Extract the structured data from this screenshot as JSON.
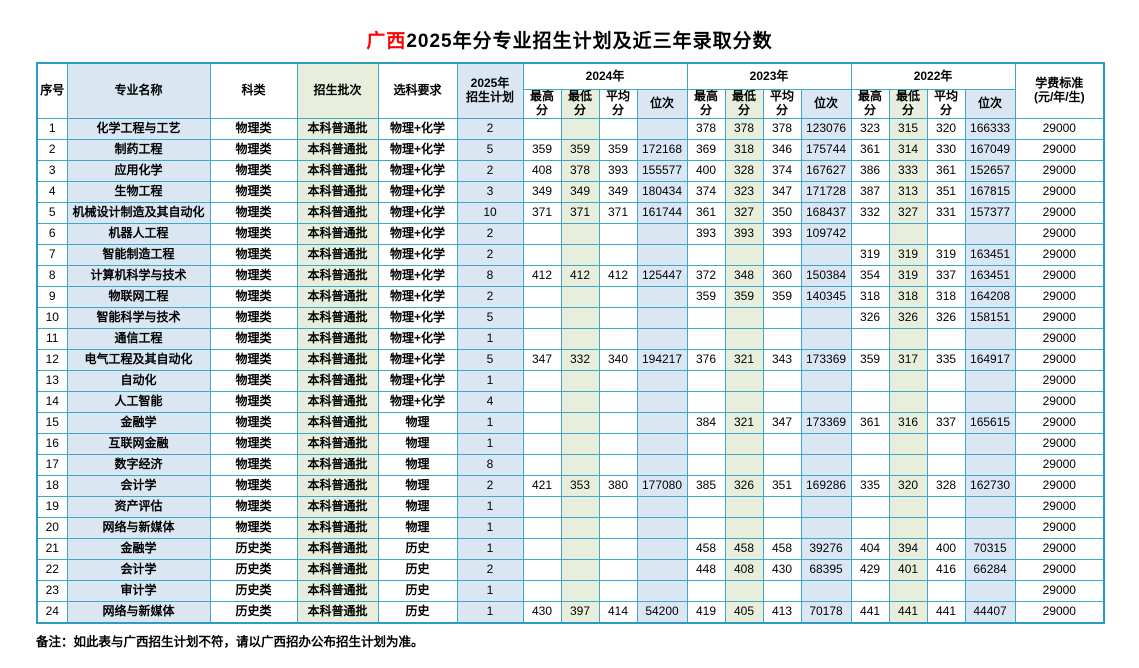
{
  "title": {
    "highlight": "广西",
    "rest": "2025年分专业招生计划及近三年录取分数"
  },
  "note": "备注：如此表与广西招生计划不符，请以广西招办公布招生计划为准。",
  "colors": {
    "border": "#3fa8c9",
    "outer_border": "#2d9cc2",
    "light_blue": "#dae7f3",
    "light_green": "#e7efdc",
    "plan_red": "#ff2a2a",
    "title_red": "#ff0000"
  },
  "header": {
    "seq": "序号",
    "major": "专业名称",
    "category": "科类",
    "batch": "招生批次",
    "subjects": "选科要求",
    "plan": "2025年\n招生计划",
    "years": [
      "2024年",
      "2023年",
      "2022年"
    ],
    "score_cols": [
      "最高分",
      "最低分",
      "平均分",
      "位次"
    ],
    "tuition": "学费标准\n(元/年/生)"
  },
  "rows": [
    {
      "seq": "1",
      "major": "化学工程与工艺",
      "category": "物理类",
      "batch": "本科普通批",
      "subjects": "物理+化学",
      "plan": "2",
      "y2024": [
        "",
        "",
        "",
        ""
      ],
      "y2023": [
        "378",
        "378",
        "378",
        "123076"
      ],
      "y2022": [
        "323",
        "315",
        "320",
        "166333"
      ],
      "tuition": "29000"
    },
    {
      "seq": "2",
      "major": "制药工程",
      "category": "物理类",
      "batch": "本科普通批",
      "subjects": "物理+化学",
      "plan": "5",
      "y2024": [
        "359",
        "359",
        "359",
        "172168"
      ],
      "y2023": [
        "369",
        "318",
        "346",
        "175744"
      ],
      "y2022": [
        "361",
        "314",
        "330",
        "167049"
      ],
      "tuition": "29000"
    },
    {
      "seq": "3",
      "major": "应用化学",
      "category": "物理类",
      "batch": "本科普通批",
      "subjects": "物理+化学",
      "plan": "2",
      "y2024": [
        "408",
        "378",
        "393",
        "155577"
      ],
      "y2023": [
        "400",
        "328",
        "374",
        "167627"
      ],
      "y2022": [
        "386",
        "333",
        "361",
        "152657"
      ],
      "tuition": "29000"
    },
    {
      "seq": "4",
      "major": "生物工程",
      "category": "物理类",
      "batch": "本科普通批",
      "subjects": "物理+化学",
      "plan": "3",
      "y2024": [
        "349",
        "349",
        "349",
        "180434"
      ],
      "y2023": [
        "374",
        "323",
        "347",
        "171728"
      ],
      "y2022": [
        "387",
        "313",
        "351",
        "167815"
      ],
      "tuition": "29000"
    },
    {
      "seq": "5",
      "major": "机械设计制造及其自动化",
      "category": "物理类",
      "batch": "本科普通批",
      "subjects": "物理+化学",
      "plan": "10",
      "y2024": [
        "371",
        "371",
        "371",
        "161744"
      ],
      "y2023": [
        "361",
        "327",
        "350",
        "168437"
      ],
      "y2022": [
        "332",
        "327",
        "331",
        "157377"
      ],
      "tuition": "29000"
    },
    {
      "seq": "6",
      "major": "机器人工程",
      "category": "物理类",
      "batch": "本科普通批",
      "subjects": "物理+化学",
      "plan": "2",
      "y2024": [
        "",
        "",
        "",
        ""
      ],
      "y2023": [
        "393",
        "393",
        "393",
        "109742"
      ],
      "y2022": [
        "",
        "",
        "",
        ""
      ],
      "tuition": "29000"
    },
    {
      "seq": "7",
      "major": "智能制造工程",
      "category": "物理类",
      "batch": "本科普通批",
      "subjects": "物理+化学",
      "plan": "2",
      "y2024": [
        "",
        "",
        "",
        ""
      ],
      "y2023": [
        "",
        "",
        "",
        ""
      ],
      "y2022": [
        "319",
        "319",
        "319",
        "163451"
      ],
      "tuition": "29000"
    },
    {
      "seq": "8",
      "major": "计算机科学与技术",
      "category": "物理类",
      "batch": "本科普通批",
      "subjects": "物理+化学",
      "plan": "8",
      "y2024": [
        "412",
        "412",
        "412",
        "125447"
      ],
      "y2023": [
        "372",
        "348",
        "360",
        "150384"
      ],
      "y2022": [
        "354",
        "319",
        "337",
        "163451"
      ],
      "tuition": "29000"
    },
    {
      "seq": "9",
      "major": "物联网工程",
      "category": "物理类",
      "batch": "本科普通批",
      "subjects": "物理+化学",
      "plan": "2",
      "y2024": [
        "",
        "",
        "",
        ""
      ],
      "y2023": [
        "359",
        "359",
        "359",
        "140345"
      ],
      "y2022": [
        "318",
        "318",
        "318",
        "164208"
      ],
      "tuition": "29000"
    },
    {
      "seq": "10",
      "major": "智能科学与技术",
      "category": "物理类",
      "batch": "本科普通批",
      "subjects": "物理+化学",
      "plan": "5",
      "y2024": [
        "",
        "",
        "",
        ""
      ],
      "y2023": [
        "",
        "",
        "",
        ""
      ],
      "y2022": [
        "326",
        "326",
        "326",
        "158151"
      ],
      "tuition": "29000"
    },
    {
      "seq": "11",
      "major": "通信工程",
      "category": "物理类",
      "batch": "本科普通批",
      "subjects": "物理+化学",
      "plan": "1",
      "y2024": [
        "",
        "",
        "",
        ""
      ],
      "y2023": [
        "",
        "",
        "",
        ""
      ],
      "y2022": [
        "",
        "",
        "",
        ""
      ],
      "tuition": "29000"
    },
    {
      "seq": "12",
      "major": "电气工程及其自动化",
      "category": "物理类",
      "batch": "本科普通批",
      "subjects": "物理+化学",
      "plan": "5",
      "y2024": [
        "347",
        "332",
        "340",
        "194217"
      ],
      "y2023": [
        "376",
        "321",
        "343",
        "173369"
      ],
      "y2022": [
        "359",
        "317",
        "335",
        "164917"
      ],
      "tuition": "29000"
    },
    {
      "seq": "13",
      "major": "自动化",
      "category": "物理类",
      "batch": "本科普通批",
      "subjects": "物理+化学",
      "plan": "1",
      "y2024": [
        "",
        "",
        "",
        ""
      ],
      "y2023": [
        "",
        "",
        "",
        ""
      ],
      "y2022": [
        "",
        "",
        "",
        ""
      ],
      "tuition": "29000"
    },
    {
      "seq": "14",
      "major": "人工智能",
      "category": "物理类",
      "batch": "本科普通批",
      "subjects": "物理+化学",
      "plan": "4",
      "y2024": [
        "",
        "",
        "",
        ""
      ],
      "y2023": [
        "",
        "",
        "",
        ""
      ],
      "y2022": [
        "",
        "",
        "",
        ""
      ],
      "tuition": "29000"
    },
    {
      "seq": "15",
      "major": "金融学",
      "category": "物理类",
      "batch": "本科普通批",
      "subjects": "物理",
      "plan": "1",
      "y2024": [
        "",
        "",
        "",
        ""
      ],
      "y2023": [
        "384",
        "321",
        "347",
        "173369"
      ],
      "y2022": [
        "361",
        "316",
        "337",
        "165615"
      ],
      "tuition": "29000"
    },
    {
      "seq": "16",
      "major": "互联网金融",
      "category": "物理类",
      "batch": "本科普通批",
      "subjects": "物理",
      "plan": "1",
      "y2024": [
        "",
        "",
        "",
        ""
      ],
      "y2023": [
        "",
        "",
        "",
        ""
      ],
      "y2022": [
        "",
        "",
        "",
        ""
      ],
      "tuition": "29000"
    },
    {
      "seq": "17",
      "major": "数字经济",
      "category": "物理类",
      "batch": "本科普通批",
      "subjects": "物理",
      "plan": "8",
      "y2024": [
        "",
        "",
        "",
        ""
      ],
      "y2023": [
        "",
        "",
        "",
        ""
      ],
      "y2022": [
        "",
        "",
        "",
        ""
      ],
      "tuition": "29000"
    },
    {
      "seq": "18",
      "major": "会计学",
      "category": "物理类",
      "batch": "本科普通批",
      "subjects": "物理",
      "plan": "2",
      "y2024": [
        "421",
        "353",
        "380",
        "177080"
      ],
      "y2023": [
        "385",
        "326",
        "351",
        "169286"
      ],
      "y2022": [
        "335",
        "320",
        "328",
        "162730"
      ],
      "tuition": "29000"
    },
    {
      "seq": "19",
      "major": "资产评估",
      "category": "物理类",
      "batch": "本科普通批",
      "subjects": "物理",
      "plan": "1",
      "y2024": [
        "",
        "",
        "",
        ""
      ],
      "y2023": [
        "",
        "",
        "",
        ""
      ],
      "y2022": [
        "",
        "",
        "",
        ""
      ],
      "tuition": "29000"
    },
    {
      "seq": "20",
      "major": "网络与新媒体",
      "category": "物理类",
      "batch": "本科普通批",
      "subjects": "物理",
      "plan": "1",
      "y2024": [
        "",
        "",
        "",
        ""
      ],
      "y2023": [
        "",
        "",
        "",
        ""
      ],
      "y2022": [
        "",
        "",
        "",
        ""
      ],
      "tuition": "29000"
    },
    {
      "seq": "21",
      "major": "金融学",
      "category": "历史类",
      "batch": "本科普通批",
      "subjects": "历史",
      "plan": "1",
      "y2024": [
        "",
        "",
        "",
        ""
      ],
      "y2023": [
        "458",
        "458",
        "458",
        "39276"
      ],
      "y2022": [
        "404",
        "394",
        "400",
        "70315"
      ],
      "tuition": "29000"
    },
    {
      "seq": "22",
      "major": "会计学",
      "category": "历史类",
      "batch": "本科普通批",
      "subjects": "历史",
      "plan": "2",
      "y2024": [
        "",
        "",
        "",
        ""
      ],
      "y2023": [
        "448",
        "408",
        "430",
        "68395"
      ],
      "y2022": [
        "429",
        "401",
        "416",
        "66284"
      ],
      "tuition": "29000"
    },
    {
      "seq": "23",
      "major": "审计学",
      "category": "历史类",
      "batch": "本科普通批",
      "subjects": "历史",
      "plan": "1",
      "y2024": [
        "",
        "",
        "",
        ""
      ],
      "y2023": [
        "",
        "",
        "",
        ""
      ],
      "y2022": [
        "",
        "",
        "",
        ""
      ],
      "tuition": "29000"
    },
    {
      "seq": "24",
      "major": "网络与新媒体",
      "category": "历史类",
      "batch": "本科普通批",
      "subjects": "历史",
      "plan": "1",
      "y2024": [
        "430",
        "397",
        "414",
        "54200"
      ],
      "y2023": [
        "419",
        "405",
        "413",
        "70178"
      ],
      "y2022": [
        "441",
        "441",
        "441",
        "44407"
      ],
      "tuition": "29000"
    }
  ]
}
